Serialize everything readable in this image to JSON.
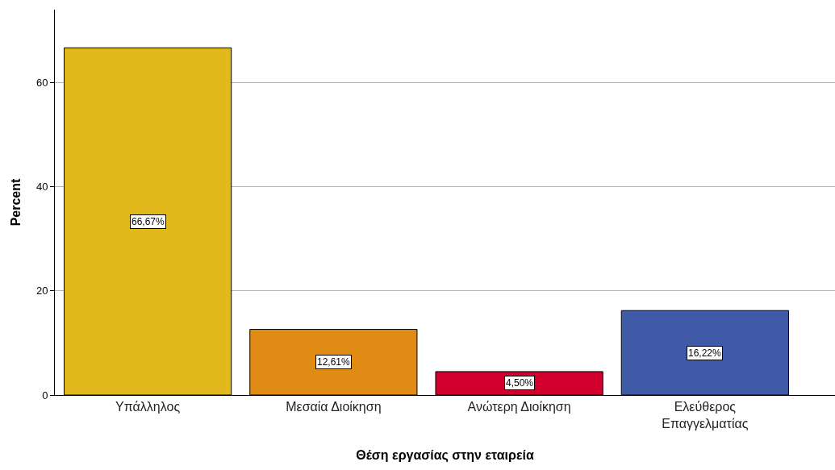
{
  "chart_data": {
    "type": "bar",
    "xlabel": "Θέση εργασίας στην εταιρεία",
    "ylabel": "Percent",
    "categories": [
      "Υπάλληλος",
      "Μεσαία Διοίκηση",
      "Ανώτερη Διοίκηση",
      "Ελεύθερος Επαγγελματίας"
    ],
    "values": [
      66.67,
      12.61,
      4.5,
      16.22
    ],
    "value_labels": [
      "66,67%",
      "12,61%",
      "4,50%",
      "16,22%"
    ],
    "colors": [
      "#e1b91c",
      "#e08c14",
      "#d2002c",
      "#3f5ba8"
    ],
    "ylim": [
      0,
      74
    ],
    "yticks": [
      0,
      20,
      40,
      60
    ],
    "grid": "y"
  }
}
